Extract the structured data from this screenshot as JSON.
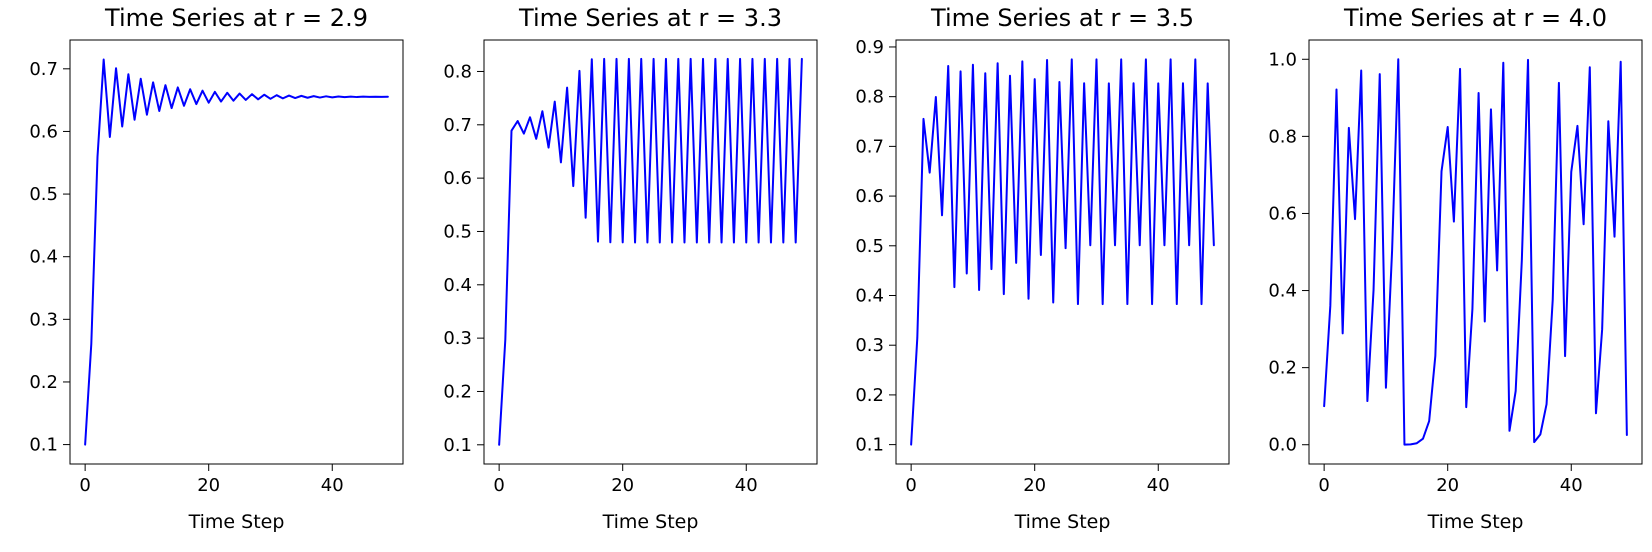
{
  "style": {
    "line_color": "#0000ff"
  },
  "chart_data": [
    {
      "type": "line",
      "title": "Time Series at r = 2.9",
      "xlabel": "Time Step",
      "ylabel": "",
      "xlim": [
        -2.45,
        51.45
      ],
      "ylim": [
        0.069,
        0.746
      ],
      "xticks": [
        0,
        20,
        40
      ],
      "yticks": [
        0.1,
        0.2,
        0.3,
        0.4,
        0.5,
        0.6,
        0.7
      ],
      "ytick_labels": [
        "0.1",
        "0.2",
        "0.3",
        "0.4",
        "0.5",
        "0.6",
        "0.7"
      ],
      "grid": false,
      "series": [
        {
          "x": [
            0,
            1,
            2,
            3,
            4,
            5,
            6,
            7,
            8,
            9,
            10,
            11,
            12,
            13,
            14,
            15,
            16,
            17,
            18,
            19,
            20,
            21,
            22,
            23,
            24,
            25,
            26,
            27,
            28,
            29,
            30,
            31,
            32,
            33,
            34,
            35,
            36,
            37,
            38,
            39,
            40,
            41,
            42,
            43,
            44,
            45,
            46,
            47,
            48,
            49
          ],
          "values": [
            0.1,
            0.261,
            0.5593,
            0.7148,
            0.5912,
            0.7009,
            0.6079,
            0.6914,
            0.6187,
            0.6841,
            0.6267,
            0.6784,
            0.6327,
            0.6739,
            0.6373,
            0.6703,
            0.6409,
            0.6674,
            0.6437,
            0.6651,
            0.6459,
            0.6632,
            0.6477,
            0.6617,
            0.6491,
            0.6605,
            0.6503,
            0.6595,
            0.6513,
            0.6586,
            0.6521,
            0.6579,
            0.6528,
            0.6573,
            0.6533,
            0.6568,
            0.6538,
            0.6564,
            0.6541,
            0.6561,
            0.6544,
            0.6558,
            0.6547,
            0.6556,
            0.6549,
            0.6555,
            0.6551,
            0.6554,
            0.6552,
            0.6553
          ]
        }
      ]
    },
    {
      "type": "line",
      "title": "Time Series at r = 3.3",
      "xlabel": "Time Step",
      "ylabel": "",
      "xlim": [
        -2.45,
        51.45
      ],
      "ylim": [
        0.064,
        0.859
      ],
      "xticks": [
        0,
        20,
        40
      ],
      "yticks": [
        0.1,
        0.2,
        0.3,
        0.4,
        0.5,
        0.6,
        0.7,
        0.8
      ],
      "ytick_labels": [
        "0.1",
        "0.2",
        "0.3",
        "0.4",
        "0.5",
        "0.6",
        "0.7",
        "0.8"
      ],
      "grid": false,
      "series": [
        {
          "x": [
            0,
            1,
            2,
            3,
            4,
            5,
            6,
            7,
            8,
            9,
            10,
            11,
            12,
            13,
            14,
            15,
            16,
            17,
            18,
            19,
            20,
            21,
            22,
            23,
            24,
            25,
            26,
            27,
            28,
            29,
            30,
            31,
            32,
            33,
            34,
            35,
            36,
            37,
            38,
            39,
            40,
            41,
            42,
            43,
            44,
            45,
            46,
            47,
            48,
            49
          ],
          "values": [
            0.1,
            0.297,
            0.689,
            0.7071,
            0.6835,
            0.7141,
            0.6737,
            0.7254,
            0.6573,
            0.7434,
            0.6295,
            0.7696,
            0.5851,
            0.8011,
            0.5258,
            0.8229,
            0.4809,
            0.8235,
            0.4797,
            0.8236,
            0.4795,
            0.8236,
            0.4794,
            0.8236,
            0.4794,
            0.8236,
            0.4794,
            0.8236,
            0.4794,
            0.8236,
            0.4794,
            0.8236,
            0.4794,
            0.8236,
            0.4794,
            0.8236,
            0.4794,
            0.8236,
            0.4794,
            0.8236,
            0.4794,
            0.8236,
            0.4794,
            0.8236,
            0.4794,
            0.8236,
            0.4794,
            0.8236,
            0.4794,
            0.8236
          ]
        }
      ]
    },
    {
      "type": "line",
      "title": "Time Series at r = 3.5",
      "xlabel": "Time Step",
      "ylabel": "",
      "xlim": [
        -2.45,
        51.45
      ],
      "ylim": [
        0.061,
        0.914
      ],
      "xticks": [
        0,
        20,
        40
      ],
      "yticks": [
        0.1,
        0.2,
        0.3,
        0.4,
        0.5,
        0.6,
        0.7,
        0.8,
        0.9
      ],
      "ytick_labels": [
        "0.1",
        "0.2",
        "0.3",
        "0.4",
        "0.5",
        "0.6",
        "0.7",
        "0.8",
        "0.9"
      ],
      "grid": false,
      "series": [
        {
          "x": [
            0,
            1,
            2,
            3,
            4,
            5,
            6,
            7,
            8,
            9,
            10,
            11,
            12,
            13,
            14,
            15,
            16,
            17,
            18,
            19,
            20,
            21,
            22,
            23,
            24,
            25,
            26,
            27,
            28,
            29,
            30,
            31,
            32,
            33,
            34,
            35,
            36,
            37,
            38,
            39,
            40,
            41,
            42,
            43,
            44,
            45,
            46,
            47,
            48,
            49
          ],
          "values": [
            0.1,
            0.315,
            0.7552,
            0.6471,
            0.7993,
            0.5614,
            0.8618,
            0.4168,
            0.8508,
            0.4443,
            0.8641,
            0.411,
            0.8472,
            0.4531,
            0.8673,
            0.4028,
            0.842,
            0.4657,
            0.8709,
            0.3935,
            0.8353,
            0.4815,
            0.8738,
            0.3859,
            0.8294,
            0.4952,
            0.875,
            0.3828,
            0.8269,
            0.5011,
            0.875,
            0.3827,
            0.8268,
            0.5012,
            0.875,
            0.3828,
            0.8269,
            0.5011,
            0.875,
            0.3827,
            0.8268,
            0.5012,
            0.875,
            0.3828,
            0.8269,
            0.5011,
            0.875,
            0.3827,
            0.8268,
            0.5012
          ]
        }
      ]
    },
    {
      "type": "line",
      "title": "Time Series at r = 4.0",
      "xlabel": "Time Step",
      "ylabel": "",
      "xlim": [
        -2.45,
        51.45
      ],
      "ylim": [
        -0.05,
        1.05
      ],
      "xticks": [
        0,
        20,
        40
      ],
      "yticks": [
        0.0,
        0.2,
        0.4,
        0.6,
        0.8,
        1.0
      ],
      "ytick_labels": [
        "0.0",
        "0.2",
        "0.4",
        "0.6",
        "0.8",
        "1.0"
      ],
      "grid": false,
      "series": [
        {
          "x": [
            0,
            1,
            2,
            3,
            4,
            5,
            6,
            7,
            8,
            9,
            10,
            11,
            12,
            13,
            14,
            15,
            16,
            17,
            18,
            19,
            20,
            21,
            22,
            23,
            24,
            25,
            26,
            27,
            28,
            29,
            30,
            31,
            32,
            33,
            34,
            35,
            36,
            37,
            38,
            39,
            40,
            41,
            42,
            43,
            44,
            45,
            46,
            47,
            48,
            49
          ],
          "values": [
            0.1,
            0.36,
            0.9216,
            0.289,
            0.8219,
            0.5854,
            0.9708,
            0.1133,
            0.402,
            0.9616,
            0.1478,
            0.5039,
            0.9999,
            0.0002,
            0.001,
            0.0039,
            0.0156,
            0.0614,
            0.2305,
            0.7095,
            0.8244,
            0.579,
            0.975,
            0.0975,
            0.352,
            0.9124,
            0.3198,
            0.8701,
            0.4522,
            0.9909,
            0.0361,
            0.1392,
            0.4793,
            0.9983,
            0.0068,
            0.027,
            0.1051,
            0.3763,
            0.9388,
            0.2298,
            0.7079,
            0.8271,
            0.5721,
            0.9792,
            0.0815,
            0.2994,
            0.8392,
            0.5398,
            0.9936,
            0.0254
          ]
        }
      ]
    }
  ]
}
